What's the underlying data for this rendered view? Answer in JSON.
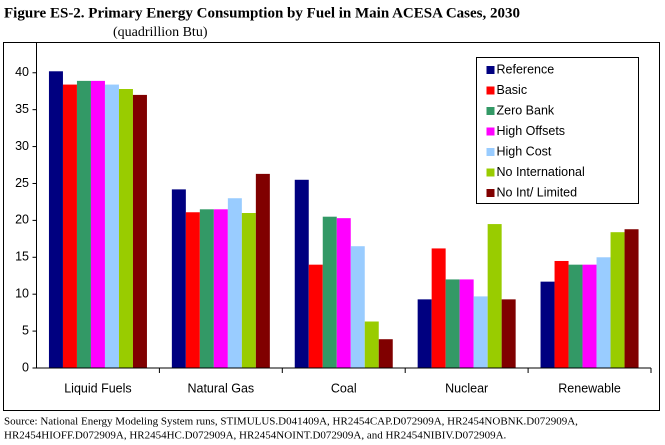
{
  "chart_data": {
    "type": "bar",
    "title": "Figure ES-2.  Primary Energy Consumption by Fuel in Main ACESA Cases, 2030",
    "subtitle": "(quadrillion Btu)",
    "categories": [
      "Liquid Fuels",
      "Natural Gas",
      "Coal",
      "Nuclear",
      "Renewable"
    ],
    "series": [
      {
        "name": "Reference",
        "color": "#000080",
        "values": [
          40.2,
          24.2,
          25.5,
          9.3,
          11.7
        ]
      },
      {
        "name": "Basic",
        "color": "#ff0000",
        "values": [
          38.4,
          21.1,
          14.0,
          16.2,
          14.5
        ]
      },
      {
        "name": "Zero Bank",
        "color": "#339966",
        "values": [
          38.9,
          21.5,
          20.5,
          12.0,
          14.0
        ]
      },
      {
        "name": "High Offsets",
        "color": "#ff00ff",
        "values": [
          38.9,
          21.5,
          20.3,
          12.0,
          14.0
        ]
      },
      {
        "name": "High Cost",
        "color": "#99ccff",
        "values": [
          38.4,
          23.0,
          16.5,
          9.7,
          15.0
        ]
      },
      {
        "name": "No International",
        "color": "#99cc00",
        "values": [
          37.8,
          21.0,
          6.3,
          19.5,
          18.4
        ]
      },
      {
        "name": "No Int/ Limited",
        "color": "#800000",
        "values": [
          37.0,
          26.3,
          3.9,
          9.3,
          18.8
        ]
      }
    ],
    "ylim": [
      0,
      42
    ],
    "yticks": [
      0,
      5,
      10,
      15,
      20,
      25,
      30,
      35,
      40
    ],
    "grid": false,
    "legend": "upper-right",
    "source": [
      "Source:  National Energy Modeling System runs, STIMULUS.D041409A, HR2454CAP.D072909A, HR2454NOBNK.D072909A,",
      "HR2454HIOFF.D072909A, HR2454HC.D072909A, HR2454NOINT.D072909A, and HR2454NIBIV.D072909A."
    ]
  }
}
